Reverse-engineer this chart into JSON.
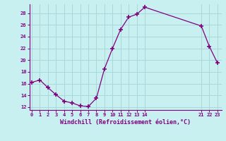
{
  "x": [
    0,
    1,
    2,
    3,
    4,
    5,
    6,
    7,
    8,
    9,
    10,
    11,
    12,
    13,
    14,
    21,
    22,
    23
  ],
  "y": [
    16.2,
    16.6,
    15.3,
    14.1,
    13.0,
    12.7,
    12.2,
    12.1,
    13.5,
    18.5,
    22.0,
    25.2,
    27.3,
    27.8,
    29.0,
    25.8,
    22.3,
    19.5
  ],
  "line_color": "#800080",
  "marker_color": "#800080",
  "bg_color": "#c8f0f0",
  "grid_color": "#a8d8d8",
  "xlabel": "Windchill (Refroidissement éolien,°C)",
  "xlabel_color": "#800080",
  "tick_color": "#800080",
  "ylim": [
    11.5,
    29.5
  ],
  "yticks": [
    12,
    14,
    16,
    18,
    20,
    22,
    24,
    26,
    28
  ],
  "xticks": [
    0,
    1,
    2,
    3,
    4,
    5,
    6,
    7,
    8,
    9,
    10,
    11,
    12,
    13,
    14,
    21,
    22,
    23
  ],
  "xlim": [
    -0.3,
    23.5
  ],
  "figsize": [
    3.2,
    2.0
  ],
  "dpi": 100
}
